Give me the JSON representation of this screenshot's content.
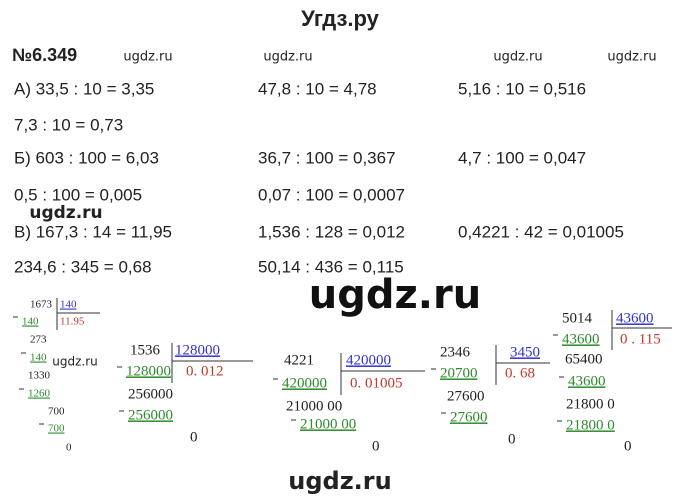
{
  "header": {
    "title": "Угдз.ру"
  },
  "problem": {
    "number": "№6.349"
  },
  "watermarks": [
    "ugdz.ru",
    "ugdz.ru",
    "ugdz.ru",
    "ugdz.ru",
    "ugdz.ru",
    "ugdz.ru",
    "ugdz.ru",
    "ugdz.ru"
  ],
  "rows": [
    [
      "А) 33,5 : 10 = 3,35",
      "47,8 : 10 = 4,78",
      "5,16 : 10 = 0,516"
    ],
    [
      "7,3 : 10 = 0,73"
    ],
    [
      "Б) 603 : 100 = 6,03",
      "36,7 : 100 = 0,367",
      "4,7 : 100 = 0,047"
    ],
    [
      "0,5 : 100 = 0,005",
      "0,07 : 100 = 0,0007"
    ],
    [
      "В) 167,3 : 14 = 11,95",
      "1,536 : 128 = 0,012",
      "0,4221 : 42 = 0,01005"
    ],
    [
      "234,6 : 345 = 0,68",
      "50,14 : 436 = 0,115"
    ]
  ],
  "divisions": [
    {
      "dividend": "1673",
      "divisor": "140",
      "quotient": "11.95",
      "steps": [
        "140",
        "273",
        "140",
        "1330",
        "1260",
        "700",
        "700",
        "0"
      ]
    },
    {
      "dividend": "1536",
      "divisor": "128000",
      "quotient": "0. 012",
      "steps": [
        "128000",
        "256000",
        "256000",
        "0"
      ]
    },
    {
      "dividend": "4221",
      "divisor": "420000",
      "quotient": "0. 01005",
      "steps": [
        "420000",
        "21000 00",
        "21000 00",
        "0"
      ]
    },
    {
      "dividend": "2346",
      "divisor": "3450",
      "quotient": "0. 68",
      "steps": [
        "20700",
        "27600",
        "27600",
        "0"
      ]
    },
    {
      "dividend": "5014",
      "divisor": "43600",
      "quotient": "0 . 115",
      "steps": [
        "43600",
        "65400",
        "43600",
        "21800 0",
        "21800 0",
        "0"
      ]
    }
  ]
}
